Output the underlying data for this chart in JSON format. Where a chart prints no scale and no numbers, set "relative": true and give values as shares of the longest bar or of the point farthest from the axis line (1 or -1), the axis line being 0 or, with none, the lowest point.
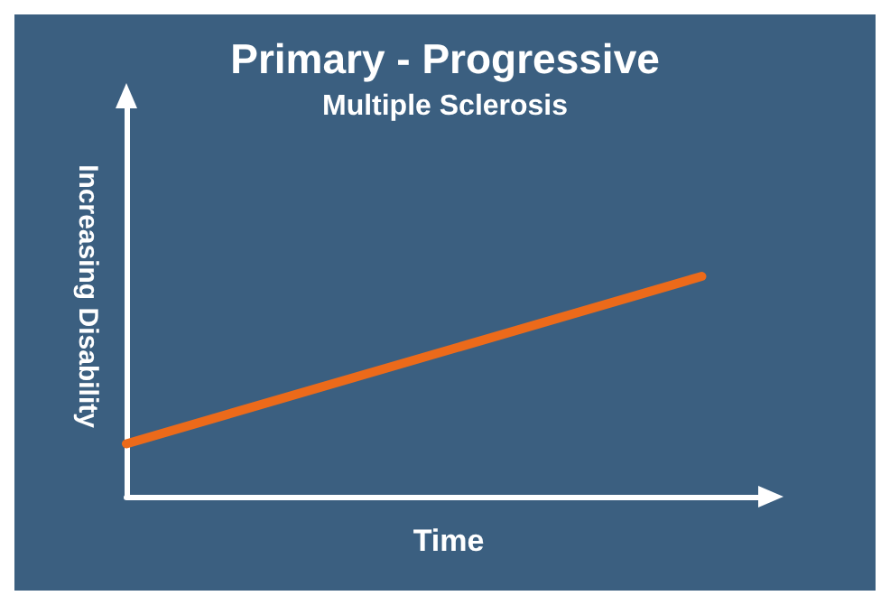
{
  "chart_data": {
    "type": "line",
    "title": "Primary - Progressive",
    "subtitle": "Multiple Sclerosis",
    "xlabel": "Time",
    "ylabel": "Increasing Disability",
    "relative": true,
    "categories": [
      null,
      null
    ],
    "series": [
      {
        "values": [
          0.24,
          1
        ],
        "color": "#ec6a1a"
      }
    ],
    "grid": false,
    "marker": "none",
    "line_style": "solid"
  }
}
